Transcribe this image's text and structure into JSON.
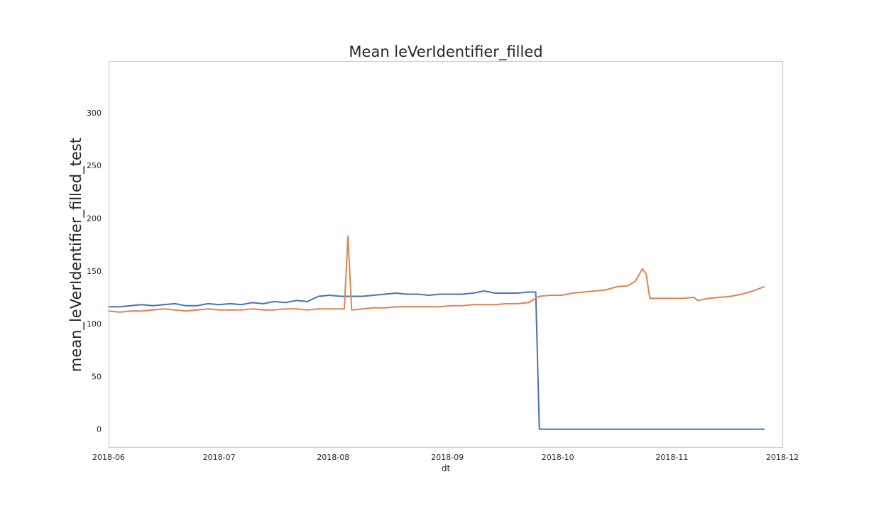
{
  "chart_data": {
    "type": "line",
    "title": "Mean leVerIdentifier_filled",
    "xlabel": "dt",
    "ylabel": "mean_leVerIdentifier_filled_test",
    "xlim": [
      "2018-06-01",
      "2018-12-01"
    ],
    "ylim": [
      -17,
      349
    ],
    "grid": false,
    "x_ticks": [
      {
        "date": "2018-06-01",
        "label": "2018-06"
      },
      {
        "date": "2018-07-01",
        "label": "2018-07"
      },
      {
        "date": "2018-08-01",
        "label": "2018-08"
      },
      {
        "date": "2018-09-01",
        "label": "2018-09"
      },
      {
        "date": "2018-10-01",
        "label": "2018-10"
      },
      {
        "date": "2018-11-01",
        "label": "2018-11"
      },
      {
        "date": "2018-12-01",
        "label": "2018-12"
      }
    ],
    "y_ticks": [
      0,
      50,
      100,
      150,
      200,
      250,
      300
    ],
    "series": [
      {
        "color": "#4c72b0",
        "points": [
          [
            "2018-06-01",
            116
          ],
          [
            "2018-06-04",
            116
          ],
          [
            "2018-06-07",
            117
          ],
          [
            "2018-06-10",
            118
          ],
          [
            "2018-06-13",
            117
          ],
          [
            "2018-06-16",
            118
          ],
          [
            "2018-06-19",
            119
          ],
          [
            "2018-06-22",
            117
          ],
          [
            "2018-06-25",
            117
          ],
          [
            "2018-06-28",
            119
          ],
          [
            "2018-07-01",
            118
          ],
          [
            "2018-07-04",
            119
          ],
          [
            "2018-07-07",
            118
          ],
          [
            "2018-07-10",
            120
          ],
          [
            "2018-07-13",
            119
          ],
          [
            "2018-07-16",
            121
          ],
          [
            "2018-07-19",
            120
          ],
          [
            "2018-07-22",
            122
          ],
          [
            "2018-07-25",
            121
          ],
          [
            "2018-07-28",
            126
          ],
          [
            "2018-07-31",
            127
          ],
          [
            "2018-08-03",
            126
          ],
          [
            "2018-08-06",
            126
          ],
          [
            "2018-08-09",
            126
          ],
          [
            "2018-08-12",
            127
          ],
          [
            "2018-08-15",
            128
          ],
          [
            "2018-08-18",
            129
          ],
          [
            "2018-08-21",
            128
          ],
          [
            "2018-08-24",
            128
          ],
          [
            "2018-08-27",
            127
          ],
          [
            "2018-08-30",
            128
          ],
          [
            "2018-09-02",
            128
          ],
          [
            "2018-09-05",
            128
          ],
          [
            "2018-09-08",
            129
          ],
          [
            "2018-09-11",
            131
          ],
          [
            "2018-09-14",
            129
          ],
          [
            "2018-09-17",
            129
          ],
          [
            "2018-09-20",
            129
          ],
          [
            "2018-09-23",
            130
          ],
          [
            "2018-09-25",
            130
          ],
          [
            "2018-09-26",
            0
          ],
          [
            "2018-11-26",
            0
          ]
        ]
      },
      {
        "color": "#dd8452",
        "points": [
          [
            "2018-06-01",
            112
          ],
          [
            "2018-06-04",
            111
          ],
          [
            "2018-06-07",
            112
          ],
          [
            "2018-06-10",
            112
          ],
          [
            "2018-06-13",
            113
          ],
          [
            "2018-06-16",
            114
          ],
          [
            "2018-06-19",
            113
          ],
          [
            "2018-06-22",
            112
          ],
          [
            "2018-06-25",
            113
          ],
          [
            "2018-06-28",
            114
          ],
          [
            "2018-07-01",
            113
          ],
          [
            "2018-07-04",
            113
          ],
          [
            "2018-07-07",
            113
          ],
          [
            "2018-07-10",
            114
          ],
          [
            "2018-07-13",
            113
          ],
          [
            "2018-07-16",
            113
          ],
          [
            "2018-07-19",
            114
          ],
          [
            "2018-07-22",
            114
          ],
          [
            "2018-07-25",
            113
          ],
          [
            "2018-07-28",
            114
          ],
          [
            "2018-07-31",
            114
          ],
          [
            "2018-08-03",
            114
          ],
          [
            "2018-08-04",
            114
          ],
          [
            "2018-08-05",
            183
          ],
          [
            "2018-08-06",
            113
          ],
          [
            "2018-08-09",
            114
          ],
          [
            "2018-08-12",
            115
          ],
          [
            "2018-08-15",
            115
          ],
          [
            "2018-08-18",
            116
          ],
          [
            "2018-08-21",
            116
          ],
          [
            "2018-08-24",
            116
          ],
          [
            "2018-08-27",
            116
          ],
          [
            "2018-08-30",
            116
          ],
          [
            "2018-09-02",
            117
          ],
          [
            "2018-09-05",
            117
          ],
          [
            "2018-09-08",
            118
          ],
          [
            "2018-09-11",
            118
          ],
          [
            "2018-09-14",
            118
          ],
          [
            "2018-09-17",
            119
          ],
          [
            "2018-09-20",
            119
          ],
          [
            "2018-09-23",
            120
          ],
          [
            "2018-09-26",
            126
          ],
          [
            "2018-09-29",
            127
          ],
          [
            "2018-10-02",
            127
          ],
          [
            "2018-10-05",
            129
          ],
          [
            "2018-10-08",
            130
          ],
          [
            "2018-10-11",
            131
          ],
          [
            "2018-10-14",
            132
          ],
          [
            "2018-10-17",
            135
          ],
          [
            "2018-10-20",
            136
          ],
          [
            "2018-10-22",
            140
          ],
          [
            "2018-10-24",
            152
          ],
          [
            "2018-10-25",
            147
          ],
          [
            "2018-10-26",
            124
          ],
          [
            "2018-10-29",
            124
          ],
          [
            "2018-11-01",
            124
          ],
          [
            "2018-11-04",
            124
          ],
          [
            "2018-11-07",
            125
          ],
          [
            "2018-11-08",
            122
          ],
          [
            "2018-11-11",
            124
          ],
          [
            "2018-11-14",
            125
          ],
          [
            "2018-11-17",
            126
          ],
          [
            "2018-11-20",
            128
          ],
          [
            "2018-11-23",
            131
          ],
          [
            "2018-11-26",
            135
          ]
        ]
      }
    ]
  }
}
